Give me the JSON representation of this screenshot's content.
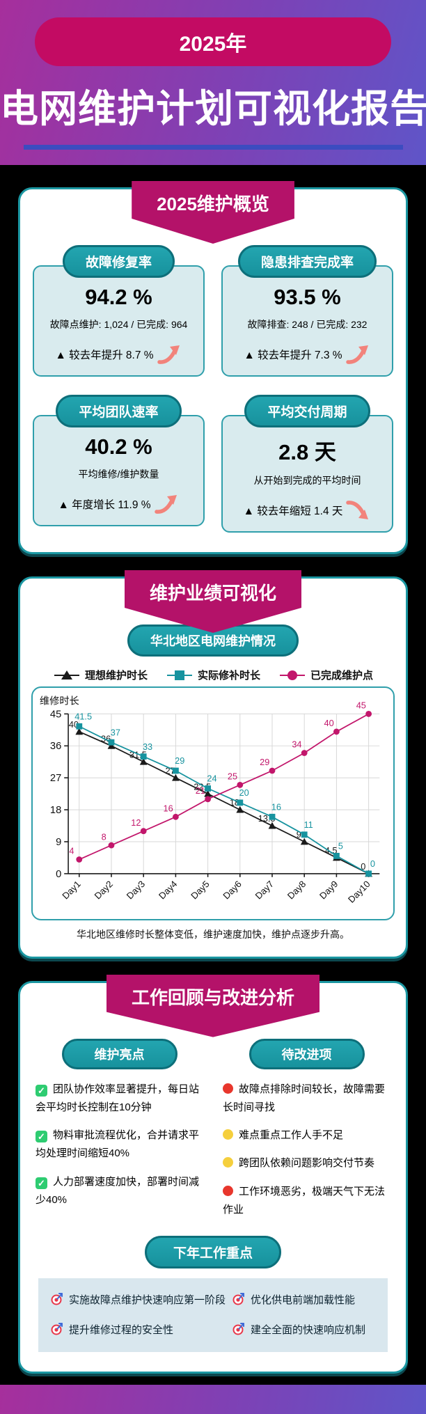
{
  "theme": {
    "accent_magenta": "#b41269",
    "year_pill_red": "#c30b63",
    "teal": "#1b97a2",
    "light_panel": "#d9ebee",
    "trend_arrow_pink": "#f2837b",
    "header_gradient": [
      "#a62f9c",
      "#5f55c8"
    ],
    "divider_blue": "#3c4cc0",
    "check_green": "#2ecc71",
    "dot_red": "#e8362c",
    "dot_yellow": "#f5cf3d"
  },
  "header": {
    "year_badge": "2025年",
    "title": "电网维护计划可视化报告"
  },
  "overview": {
    "banner": "2025维护概览",
    "cards": [
      {
        "label": "故障修复率",
        "value": "94.2 %",
        "desc": "故障点维护: 1,024 / 已完成: 964",
        "change": "▲ 较去年提升 8.7 %",
        "trend": "up"
      },
      {
        "label": "隐患排查完成率",
        "value": "93.5 %",
        "desc": "故障排查: 248 / 已完成: 232",
        "change": "▲ 较去年提升 7.3 %",
        "trend": "up"
      },
      {
        "label": "平均团队速率",
        "value": "40.2 %",
        "desc": "平均维修/维护数量",
        "change": "▲ 年度增长 11.9 %",
        "trend": "up"
      },
      {
        "label": "平均交付周期",
        "value": "2.8 天",
        "desc": "从开始到完成的平均时间",
        "change": "▲ 较去年缩短 1.4 天",
        "trend": "down"
      }
    ]
  },
  "performance": {
    "banner": "维护业绩可视化",
    "subtitle_pill": "华北地区电网维护情况",
    "caption": "华北地区维修时长整体变低，维护速度加快，维护点逐步升高。"
  },
  "chart_data": {
    "type": "line",
    "title": "华北地区电网维护情况",
    "categories": [
      "Day1",
      "Day2",
      "Day3",
      "Day4",
      "Day5",
      "Day6",
      "Day7",
      "Day8",
      "Day9",
      "Day10"
    ],
    "series": [
      {
        "name": "理想维护时长",
        "marker": "triangle",
        "color": "#1a1a1a",
        "values": [
          40,
          36,
          31.5,
          27,
          22.5,
          18,
          13.5,
          9,
          4.5,
          0
        ]
      },
      {
        "name": "实际修补时长",
        "marker": "square",
        "color": "#17939f",
        "values": [
          41.5,
          37,
          33,
          29,
          24,
          20,
          16,
          11,
          5,
          0
        ]
      },
      {
        "name": "已完成维护点",
        "marker": "circle",
        "color": "#c2166b",
        "values": [
          4,
          8,
          12,
          16,
          21,
          25,
          29,
          34,
          40,
          45
        ]
      }
    ],
    "xlabel": "",
    "ylabel": "维修时长",
    "ylim": [
      0,
      45
    ],
    "yticks": [
      0,
      9,
      18,
      27,
      36,
      45
    ],
    "grid": true,
    "legend_position": "top"
  },
  "review": {
    "banner": "工作回顾与改进分析",
    "highlights": {
      "pill": "维护亮点",
      "items": [
        "团队协作效率显著提升，每日站会平均时长控制在10分钟",
        "物料审批流程优化，合并请求平均处理时间缩短40%",
        "人力部署速度加快，部署时间减少40%"
      ]
    },
    "improvements": {
      "pill": "待改进项",
      "items": [
        {
          "text": "故障点排除时间较长，故障需要长时间寻找",
          "severity": "red"
        },
        {
          "text": "难点重点工作人手不足",
          "severity": "yellow"
        },
        {
          "text": "跨团队依赖问题影响交付节奏",
          "severity": "yellow"
        },
        {
          "text": "工作环境恶劣，极端天气下无法作业",
          "severity": "red"
        }
      ]
    },
    "next_year": {
      "pill": "下年工作重点",
      "items": [
        "实施故障点维护快速响应第一阶段",
        "优化供电前端加载性能",
        "提升维修过程的安全性",
        "建全全面的快速响应机制"
      ]
    }
  }
}
